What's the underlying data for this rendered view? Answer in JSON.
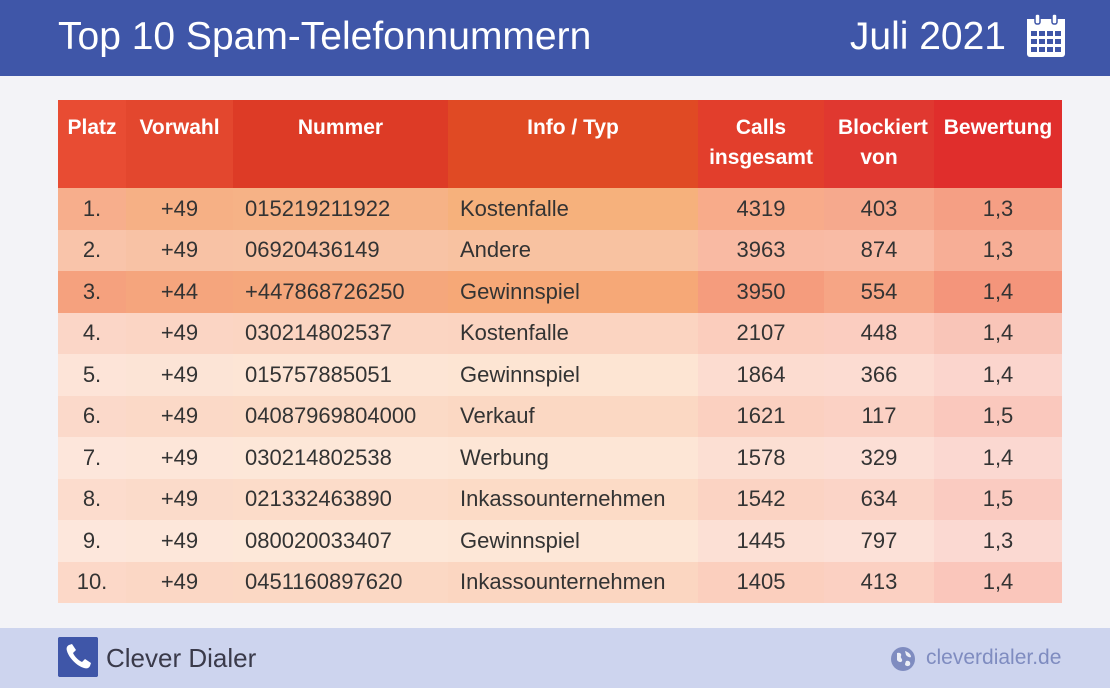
{
  "header": {
    "title": "Top 10 Spam-Telefonnummern",
    "date": "Juli 2021"
  },
  "chart_data": {
    "type": "table",
    "columns": [
      {
        "label": "Platz",
        "bg": "#e84c33"
      },
      {
        "label": "Vorwahl",
        "bg": "#e3472e"
      },
      {
        "label": "Nummer",
        "bg": "#dd3b26"
      },
      {
        "label": "Info / Typ",
        "bg": "#e04a24"
      },
      {
        "label": "Calls insgesamt",
        "bg": "#e23e2c"
      },
      {
        "label": "Blockiert von",
        "bg": "#e03830"
      },
      {
        "label": "Bewertung",
        "bg": "#e02e2c"
      }
    ],
    "rows": [
      {
        "cells": [
          "1.",
          "+49",
          "015219211922",
          "Kostenfalle",
          "4319",
          "403",
          "1,3"
        ],
        "colors": [
          "#f7ae8c",
          "#f6b085",
          "#f6b286",
          "#f6b17c",
          "#f8ab8a",
          "#f6a98d",
          "#f59f84"
        ]
      },
      {
        "cells": [
          "2.",
          "+49",
          "06920436149",
          "Andere",
          "3963",
          "874",
          "1,3"
        ],
        "colors": [
          "#f9c4aa",
          "#f8c2a5",
          "#f8c3a5",
          "#f8c2a1",
          "#f9baa3",
          "#f9bba5",
          "#f7ae96"
        ]
      },
      {
        "cells": [
          "3.",
          "+44",
          "+447868726250",
          "Gewinnspiel",
          "3950",
          "554",
          "1,4"
        ],
        "colors": [
          "#f5a17e",
          "#f5a57d",
          "#f5a77c",
          "#f6a877",
          "#f59c7d",
          "#f6a585",
          "#f4957b"
        ]
      },
      {
        "cells": [
          "4.",
          "+49",
          "030214802537",
          "Kostenfalle",
          "2107",
          "448",
          "1,4"
        ],
        "colors": [
          "#fbd6c7",
          "#fbd5c4",
          "#fbd5c2",
          "#fbd4c1",
          "#fbcdbd",
          "#fbcdc0",
          "#f9c5b8"
        ]
      },
      {
        "cells": [
          "5.",
          "+49",
          "015757885051",
          "Gewinnspiel",
          "1864",
          "366",
          "1,4"
        ],
        "colors": [
          "#fde4d8",
          "#fce4d6",
          "#fde5d5",
          "#fde5d3",
          "#fcdcd0",
          "#fcdcd2",
          "#fbd5cd"
        ]
      },
      {
        "cells": [
          "6.",
          "+49",
          "04087969804000",
          "Verkauf",
          "1621",
          "117",
          "1,5"
        ],
        "colors": [
          "#fbd9ca",
          "#fbd9c7",
          "#fbdac6",
          "#fbd8c3",
          "#fbd0c0",
          "#fbd1c4",
          "#fac8bd"
        ]
      },
      {
        "cells": [
          "7.",
          "+49",
          "030214802538",
          "Werbung",
          "1578",
          "329",
          "1,4"
        ],
        "colors": [
          "#fde6db",
          "#fde6d9",
          "#fde7d8",
          "#fde6d6",
          "#fcdfd3",
          "#fcdfd6",
          "#fbd8d1"
        ]
      },
      {
        "cells": [
          "8.",
          "+49",
          "021332463890",
          "Inkassounternehmen",
          "1542",
          "634",
          "1,5"
        ],
        "colors": [
          "#fcdccd",
          "#fbdbca",
          "#fcdcc9",
          "#fcdbc6",
          "#fbd3c3",
          "#fbd4c7",
          "#facbc1"
        ]
      },
      {
        "cells": [
          "9.",
          "+49",
          "080020033407",
          "Gewinnspiel",
          "1445",
          "797",
          "1,3"
        ],
        "colors": [
          "#fde7dc",
          "#fde7da",
          "#fde8d9",
          "#fde7d7",
          "#fce0d5",
          "#fce1d8",
          "#fbd9d2"
        ]
      },
      {
        "cells": [
          "10.",
          "+49",
          "0451160897620",
          "Inkassounternehmen",
          "1405",
          "413",
          "1,4"
        ],
        "colors": [
          "#fcd8c8",
          "#fbd7c5",
          "#fbd8c4",
          "#fbd6c1",
          "#fbcfbe",
          "#fbd0c2",
          "#fac6bb"
        ]
      }
    ]
  },
  "footer": {
    "brand": "Clever Dialer",
    "site": "cleverdialer.de"
  },
  "colors": {
    "header_bg": "#3f56a8",
    "footer_bg": "#cdd4ee",
    "logo": "#3f56a8",
    "site_text": "#7f8cc0"
  },
  "icons": {
    "header": "calendar-icon",
    "logo": "phone-icon",
    "site": "globe-icon"
  }
}
